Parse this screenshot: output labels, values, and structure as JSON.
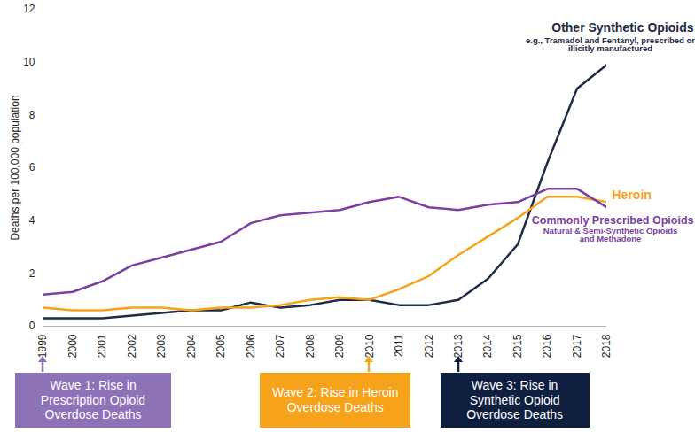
{
  "chart_data": {
    "type": "line",
    "y_label": "Deaths per 100,000 population",
    "x": [
      1999,
      2000,
      2001,
      2002,
      2003,
      2004,
      2005,
      2006,
      2007,
      2008,
      2009,
      2010,
      2011,
      2012,
      2013,
      2014,
      2015,
      2016,
      2017,
      2018
    ],
    "xlim": [
      1999,
      2018
    ],
    "xticks": [
      1999,
      2000,
      2001,
      2002,
      2003,
      2004,
      2005,
      2006,
      2007,
      2008,
      2009,
      2010,
      2011,
      2012,
      2013,
      2014,
      2015,
      2016,
      2017,
      2018
    ],
    "ylim": [
      0,
      12
    ],
    "yticks": [
      0,
      2,
      4,
      6,
      8,
      10,
      12
    ],
    "grid": false,
    "series": [
      {
        "name": "Other Synthetic Opioids",
        "description": "e.g., Tramadol and Fentanyl, prescribed or illicitly manufactured",
        "color": "#1f2a44",
        "values": [
          0.3,
          0.3,
          0.3,
          0.4,
          0.5,
          0.6,
          0.6,
          0.9,
          0.7,
          0.8,
          1.0,
          1.0,
          0.8,
          0.8,
          1.0,
          1.8,
          3.1,
          6.2,
          9.0,
          9.9
        ]
      },
      {
        "name": "Heroin",
        "color": "#f7a21b",
        "values": [
          0.7,
          0.6,
          0.6,
          0.7,
          0.7,
          0.6,
          0.7,
          0.7,
          0.8,
          1.0,
          1.1,
          1.0,
          1.4,
          1.9,
          2.7,
          3.4,
          4.1,
          4.9,
          4.9,
          4.7
        ]
      },
      {
        "name": "Commonly Prescribed Opioids",
        "description": "Natural & Semi-Synthetic Opioids and Methadone",
        "color": "#7b3fa0",
        "values": [
          1.2,
          1.3,
          1.7,
          2.3,
          2.6,
          2.9,
          3.2,
          3.9,
          4.2,
          4.3,
          4.4,
          4.7,
          4.9,
          4.5,
          4.4,
          4.6,
          4.7,
          5.2,
          5.2,
          4.5
        ]
      }
    ],
    "annotations": [
      {
        "text": "Wave 1: Rise in Prescription Opioid Overdose Deaths",
        "x": 1999,
        "color": "#8e72b8"
      },
      {
        "text": "Wave 2: Rise in Heroin Overdose Deaths",
        "x": 2010,
        "color": "#f7a21b"
      },
      {
        "text": "Wave 3: Rise in Synthetic Opioid Overdose Deaths",
        "x": 2013,
        "color": "#0f1f40"
      }
    ]
  }
}
